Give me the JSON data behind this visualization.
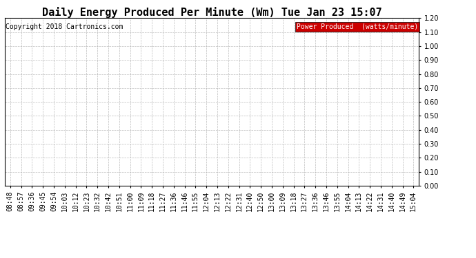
{
  "title": "Daily Energy Produced Per Minute (Wm) Tue Jan 23 15:07",
  "copyright_text": "Copyright 2018 Cartronics.com",
  "legend_label": "Power Produced  (watts/minute)",
  "legend_bg": "#cc0000",
  "legend_text_color": "#ffffff",
  "ylim": [
    0.0,
    1.2
  ],
  "yticks": [
    0.0,
    0.1,
    0.2,
    0.3,
    0.4,
    0.5,
    0.6,
    0.7,
    0.8,
    0.9,
    1.0,
    1.1,
    1.2
  ],
  "x_labels": [
    "08:48",
    "08:57",
    "09:36",
    "09:45",
    "09:54",
    "10:03",
    "10:12",
    "10:23",
    "10:32",
    "10:42",
    "10:51",
    "11:00",
    "11:09",
    "11:18",
    "11:27",
    "11:36",
    "11:46",
    "11:55",
    "12:04",
    "12:13",
    "12:22",
    "12:31",
    "12:40",
    "12:50",
    "13:00",
    "13:09",
    "13:18",
    "13:27",
    "13:36",
    "13:46",
    "13:55",
    "14:04",
    "14:13",
    "14:22",
    "14:31",
    "14:40",
    "14:49",
    "15:04"
  ],
  "background_color": "#ffffff",
  "grid_color": "#aaaaaa",
  "title_fontsize": 11,
  "copyright_fontsize": 7,
  "legend_fontsize": 7,
  "tick_fontsize": 7
}
